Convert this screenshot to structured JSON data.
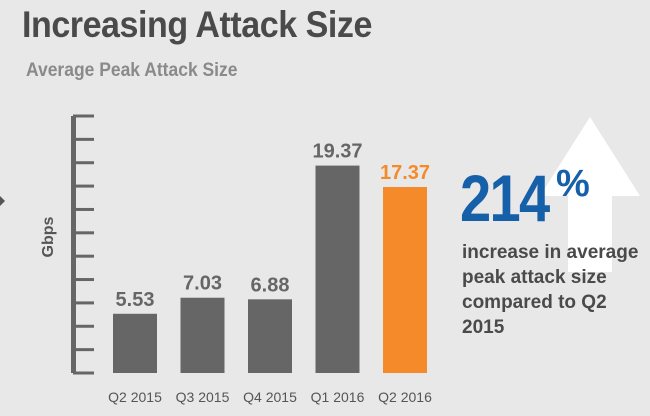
{
  "title": "Increasing Attack Size",
  "subtitle": "Average Peak Attack Size",
  "callout": {
    "value": "214",
    "suffix": "%",
    "text": "increase in average peak attack size compared to Q2 2015"
  },
  "colors": {
    "bar": "#666666",
    "highlight": "#f58a2a",
    "accent": "#1560a8"
  },
  "chart_data": {
    "type": "bar",
    "title": "Average Peak Attack Size",
    "ylabel": "Gbps",
    "categories": [
      "Q2 2015",
      "Q3 2015",
      "Q4 2015",
      "Q1 2016",
      "Q2 2016"
    ],
    "values": [
      5.53,
      7.03,
      6.88,
      19.37,
      17.37
    ],
    "value_labels": [
      "5.53",
      "7.03",
      "6.88",
      "19.37",
      "17.37"
    ],
    "highlight_index": 4,
    "ylim": [
      0,
      24
    ],
    "grid": false,
    "tick_count": 12
  }
}
